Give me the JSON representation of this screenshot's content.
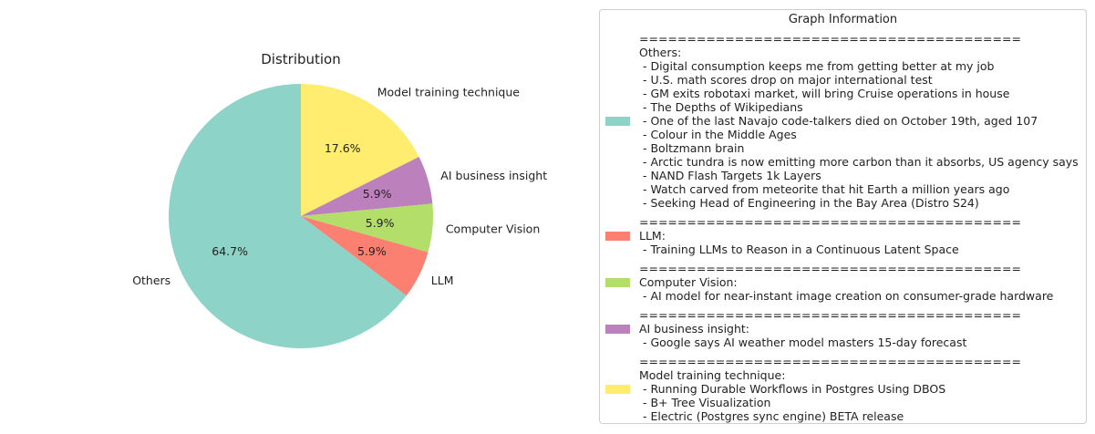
{
  "chart_data": {
    "type": "pie",
    "title": "Distribution",
    "slices": [
      {
        "label": "Model training technique",
        "value": 17.6,
        "pct_label": "17.6%",
        "color": "#ffed6f"
      },
      {
        "label": "AI business insight",
        "value": 5.9,
        "pct_label": "5.9%",
        "color": "#bc80bd"
      },
      {
        "label": "Computer Vision",
        "value": 5.9,
        "pct_label": "5.9%",
        "color": "#b3de69"
      },
      {
        "label": "LLM",
        "value": 5.9,
        "pct_label": "5.9%",
        "color": "#fb8072"
      },
      {
        "label": "Others",
        "value": 64.7,
        "pct_label": "64.7%",
        "color": "#8dd3c7"
      }
    ],
    "start_angle_deg": 90,
    "direction": "clockwise",
    "legend_placement": "right"
  },
  "legend": {
    "title": "Graph Information",
    "separator": "========================================",
    "entries": [
      {
        "color": "#8dd3c7",
        "header": "Others:",
        "items": [
          "Digital consumption keeps me from getting better at my job",
          "U.S. math scores drop on major international test",
          "GM exits robotaxi market, will bring Cruise operations in house",
          "The Depths of Wikipedians",
          "One of the last Navajo code-talkers died on October 19th, aged 107",
          "Colour in the Middle Ages",
          "Boltzmann brain",
          "Arctic tundra is now emitting more carbon than it absorbs, US agency says",
          "NAND Flash Targets 1k Layers",
          "Watch carved from meteorite that hit Earth a million years ago",
          "Seeking Head of Engineering in the Bay Area (Distro S24)"
        ]
      },
      {
        "color": "#fb8072",
        "header": "LLM:",
        "items": [
          "Training LLMs to Reason in a Continuous Latent Space"
        ]
      },
      {
        "color": "#b3de69",
        "header": "Computer Vision:",
        "items": [
          "AI model for near-instant image creation on consumer-grade hardware"
        ]
      },
      {
        "color": "#bc80bd",
        "header": "AI business insight:",
        "items": [
          "Google says AI weather model masters 15-day forecast"
        ]
      },
      {
        "color": "#ffed6f",
        "header": "Model training technique:",
        "items": [
          "Running Durable Workflows in Postgres Using DBOS",
          "B+ Tree Visualization",
          "Electric (Postgres sync engine) BETA release"
        ]
      }
    ]
  }
}
